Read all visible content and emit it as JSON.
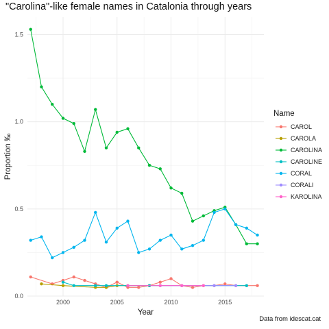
{
  "chart_data": {
    "type": "line",
    "title": "\"Carolina\"-like female names in Catalonia through years",
    "xlabel": "Year",
    "ylabel": "Proportion ‰",
    "caption": "Data from idescat.cat",
    "xlim": [
      1996.7,
      2018.6
    ],
    "ylim": [
      0,
      1.6
    ],
    "x_ticks": [
      2000,
      2005,
      2010,
      2015
    ],
    "x_tick_labels": [
      "2000",
      "2005",
      "2010",
      "2015"
    ],
    "y_ticks": [
      0.0,
      0.5,
      1.0,
      1.5
    ],
    "y_tick_labels": [
      "0.0",
      "0.5",
      "1.0",
      "1.5"
    ],
    "grid": true,
    "legend_title": "Name",
    "legend_position": "right",
    "series": [
      {
        "name": "CAROL",
        "color": "#F8766D",
        "x": [
          1997,
          1999,
          2000,
          2001,
          2002,
          2003,
          2004,
          2005,
          2006,
          2007,
          2008,
          2009,
          2010,
          2011,
          2012,
          2013,
          2014,
          2015,
          2016,
          2017,
          2018
        ],
        "values": [
          0.11,
          0.07,
          0.09,
          0.11,
          0.09,
          0.07,
          0.05,
          0.08,
          0.05,
          0.05,
          0.06,
          0.08,
          0.1,
          0.06,
          0.05,
          0.06,
          0.06,
          0.07,
          0.06,
          0.06,
          0.06
        ]
      },
      {
        "name": "CAROLA",
        "color": "#B79F00",
        "x": [
          1998,
          2000,
          2003,
          2004,
          2005,
          2008
        ],
        "values": [
          0.07,
          0.06,
          0.05,
          0.05,
          0.06,
          0.06
        ]
      },
      {
        "name": "CAROLINA",
        "color": "#00BA38",
        "x": [
          1997,
          1998,
          1999,
          2000,
          2001,
          2002,
          2003,
          2004,
          2005,
          2006,
          2007,
          2008,
          2009,
          2010,
          2011,
          2012,
          2013,
          2014,
          2015,
          2016,
          2017,
          2018
        ],
        "values": [
          1.53,
          1.2,
          1.1,
          1.02,
          0.99,
          0.83,
          1.07,
          0.85,
          0.94,
          0.96,
          0.85,
          0.75,
          0.73,
          0.62,
          0.59,
          0.43,
          0.46,
          0.49,
          0.51,
          0.41,
          0.3,
          0.3
        ]
      },
      {
        "name": "CAROLINE",
        "color": "#00BFC4",
        "x": [
          2000,
          2001,
          2003,
          2004,
          2006,
          2008,
          2017
        ],
        "values": [
          0.08,
          0.06,
          0.06,
          0.06,
          0.06,
          0.06,
          0.06
        ]
      },
      {
        "name": "CORAL",
        "color": "#00B5EE",
        "x": [
          1997,
          1998,
          1999,
          2000,
          2001,
          2002,
          2003,
          2004,
          2005,
          2006,
          2007,
          2008,
          2009,
          2010,
          2011,
          2012,
          2013,
          2014,
          2015,
          2016,
          2017,
          2018
        ],
        "values": [
          0.32,
          0.34,
          0.22,
          0.25,
          0.28,
          0.32,
          0.48,
          0.31,
          0.39,
          0.43,
          0.25,
          0.27,
          0.32,
          0.35,
          0.27,
          0.29,
          0.32,
          0.48,
          0.5,
          0.41,
          0.39,
          0.35
        ]
      },
      {
        "name": "CORALI",
        "color": "#9F8CFF",
        "x": [
          2009,
          2011,
          2014,
          2016
        ],
        "values": [
          0.06,
          0.06,
          0.06,
          0.06
        ]
      },
      {
        "name": "KAROLINA",
        "color": "#FF61C9",
        "x": [
          2006,
          2009,
          2011,
          2013
        ],
        "values": [
          0.06,
          0.06,
          0.06,
          0.06
        ]
      }
    ]
  }
}
